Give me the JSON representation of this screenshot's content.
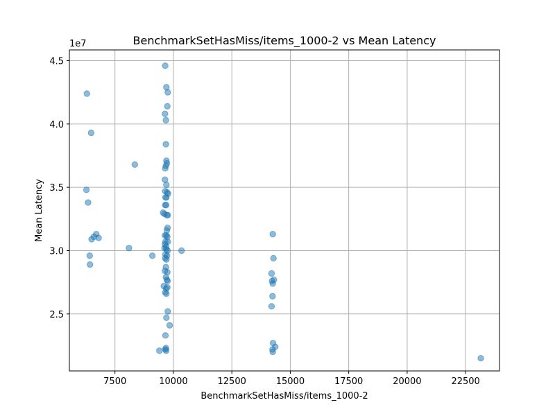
{
  "chart_data": {
    "type": "scatter",
    "title": "BenchmarkSetHasMiss/items_1000-2 vs Mean Latency",
    "xlabel": "BenchmarkSetHasMiss/items_1000-2",
    "ylabel": "Mean Latency",
    "y_offset_label": "1e7",
    "xlim": [
      5550,
      23950
    ],
    "ylim": [
      20500000,
      45850000
    ],
    "xticks": [
      7500,
      10000,
      12500,
      15000,
      17500,
      20000,
      22500
    ],
    "xtick_labels": [
      "7500",
      "10000",
      "12500",
      "15000",
      "17500",
      "20000",
      "22500"
    ],
    "yticks": [
      25000000,
      30000000,
      35000000,
      40000000,
      45000000
    ],
    "ytick_labels": [
      "2.5",
      "3.0",
      "3.5",
      "4.0",
      "4.5"
    ],
    "grid": true,
    "color": "#1f77b4",
    "points": [
      [
        6300,
        42400000
      ],
      [
        6480,
        39300000
      ],
      [
        6280,
        34800000
      ],
      [
        6350,
        33800000
      ],
      [
        6500,
        30900000
      ],
      [
        6600,
        31100000
      ],
      [
        6700,
        31300000
      ],
      [
        6800,
        31000000
      ],
      [
        6420,
        29600000
      ],
      [
        6430,
        28900000
      ],
      [
        8100,
        30200000
      ],
      [
        8350,
        36800000
      ],
      [
        9100,
        29600000
      ],
      [
        9400,
        22100000
      ],
      [
        10350,
        30000000
      ],
      [
        9650,
        44600000
      ],
      [
        9700,
        42900000
      ],
      [
        9760,
        42500000
      ],
      [
        9740,
        41400000
      ],
      [
        9640,
        40800000
      ],
      [
        9680,
        40300000
      ],
      [
        9680,
        38400000
      ],
      [
        9700,
        37100000
      ],
      [
        9720,
        36900000
      ],
      [
        9680,
        36700000
      ],
      [
        9650,
        36500000
      ],
      [
        9640,
        35600000
      ],
      [
        9700,
        35200000
      ],
      [
        9650,
        34700000
      ],
      [
        9730,
        34600000
      ],
      [
        9770,
        34500000
      ],
      [
        9700,
        34200000
      ],
      [
        9660,
        34200000
      ],
      [
        9650,
        33600000
      ],
      [
        9690,
        33600000
      ],
      [
        9560,
        33000000
      ],
      [
        9620,
        32900000
      ],
      [
        9720,
        32800000
      ],
      [
        9760,
        32800000
      ],
      [
        9750,
        31800000
      ],
      [
        9720,
        31600000
      ],
      [
        9640,
        31200000
      ],
      [
        9700,
        31200000
      ],
      [
        9740,
        31100000
      ],
      [
        9660,
        30700000
      ],
      [
        9760,
        30700000
      ],
      [
        9640,
        30500000
      ],
      [
        9690,
        30300000
      ],
      [
        9620,
        30200000
      ],
      [
        9700,
        30100000
      ],
      [
        9750,
        30000000
      ],
      [
        9660,
        29700000
      ],
      [
        9730,
        29600000
      ],
      [
        9650,
        29400000
      ],
      [
        9700,
        29300000
      ],
      [
        9680,
        28700000
      ],
      [
        9640,
        28400000
      ],
      [
        9740,
        28300000
      ],
      [
        9680,
        27900000
      ],
      [
        9720,
        27700000
      ],
      [
        9750,
        27600000
      ],
      [
        9590,
        27200000
      ],
      [
        9740,
        27100000
      ],
      [
        9690,
        27000000
      ],
      [
        9650,
        26700000
      ],
      [
        9700,
        26600000
      ],
      [
        9760,
        25200000
      ],
      [
        9700,
        24700000
      ],
      [
        9840,
        24100000
      ],
      [
        9660,
        23300000
      ],
      [
        9680,
        22300000
      ],
      [
        9650,
        22200000
      ],
      [
        9690,
        22100000
      ],
      [
        14250,
        31300000
      ],
      [
        14280,
        29400000
      ],
      [
        14200,
        28200000
      ],
      [
        14300,
        27700000
      ],
      [
        14220,
        27600000
      ],
      [
        14250,
        27400000
      ],
      [
        14240,
        26400000
      ],
      [
        14200,
        25600000
      ],
      [
        14260,
        22700000
      ],
      [
        14360,
        22400000
      ],
      [
        14240,
        22200000
      ],
      [
        14250,
        22000000
      ],
      [
        23150,
        21500000
      ]
    ]
  }
}
